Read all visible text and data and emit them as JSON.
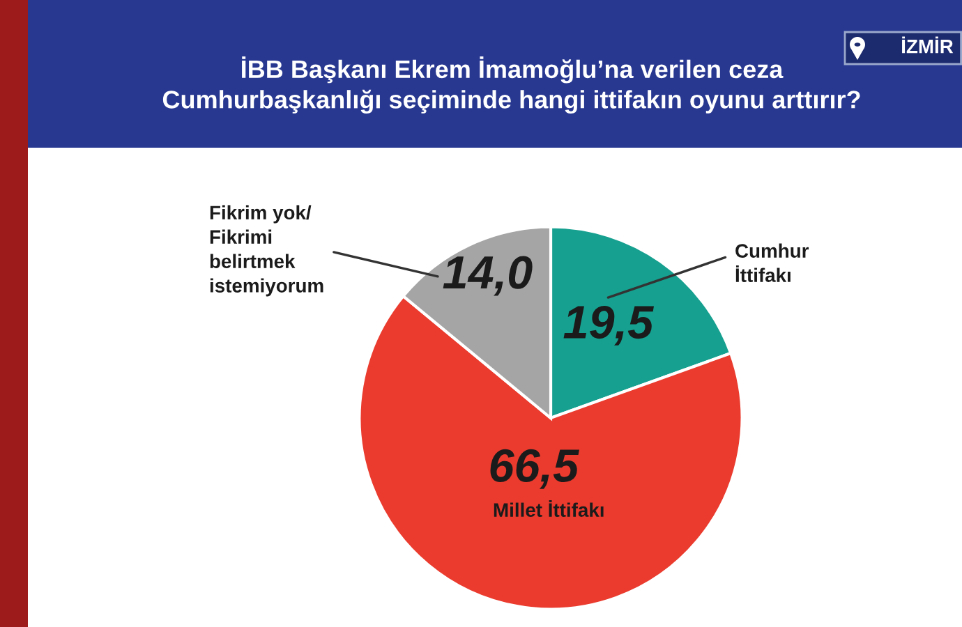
{
  "chart_data": {
    "type": "pie",
    "title": "İBB Başkanı Ekrem İmamoğlu’na verilen ceza\nCumhurbaşkanlığı seçiminde hangi ittifakın oyunu arttırır?",
    "categories": [
      "Cumhur\nİttifakı",
      "Millet İttifakı",
      "Fikrim yok/\nFikrimi\nbelirtmek\nistemiyorum"
    ],
    "values": [
      19.5,
      66.5,
      14.0
    ],
    "value_labels": [
      "19,5",
      "66,5",
      "14,0"
    ],
    "colors": [
      "#16a08f",
      "#ea3b2e",
      "#a5a5a5"
    ],
    "annotations": [
      "İZMİR"
    ]
  }
}
